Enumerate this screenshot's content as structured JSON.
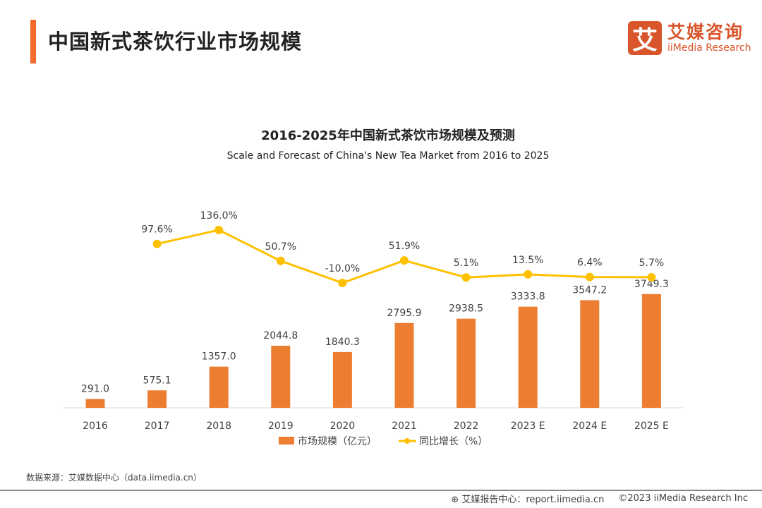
{
  "header": {
    "title": "中国新式茶饮行业市场规模"
  },
  "logo": {
    "mark": "艾",
    "cn": "艾媒咨询",
    "en": "iiMedia Research"
  },
  "chart_data": {
    "type": "bar+line",
    "title": "2016-2025年中国新式茶饮市场规模及预测",
    "subtitle": "Scale and Forecast of China's New Tea Market from 2016 to 2025",
    "categories": [
      "2016",
      "2017",
      "2018",
      "2019",
      "2020",
      "2021",
      "2022",
      "2023 E",
      "2024 E",
      "2025 E"
    ],
    "series": [
      {
        "name": "市场规模（亿元）",
        "type": "bar",
        "color": "#ed7d31",
        "values": [
          291.0,
          575.1,
          1357.0,
          2044.8,
          1840.3,
          2795.9,
          2938.5,
          3333.8,
          3547.2,
          3749.3
        ],
        "labels": [
          "291.0",
          "575.1",
          "1357.0",
          "2044.8",
          "1840.3",
          "2795.9",
          "2938.5",
          "3333.8",
          "3547.2",
          "3749.3"
        ]
      },
      {
        "name": "同比增长（%）",
        "type": "line",
        "color": "#ffc000",
        "values": [
          null,
          97.6,
          136.0,
          50.7,
          -10.0,
          51.9,
          5.1,
          13.5,
          6.4,
          5.7
        ],
        "labels": [
          "",
          "97.6%",
          "136.0%",
          "50.7%",
          "-10.0%",
          "51.9%",
          "5.1%",
          "13.5%",
          "6.4%",
          "5.7%"
        ]
      }
    ],
    "legend": "bottom",
    "grid": false
  },
  "source": "数据来源：艾媒数据中心（data.iimedia.cn）",
  "footer": {
    "report": "艾媒报告中心：report.iimedia.cn",
    "copyright": "©2023  iiMedia Research  Inc"
  }
}
